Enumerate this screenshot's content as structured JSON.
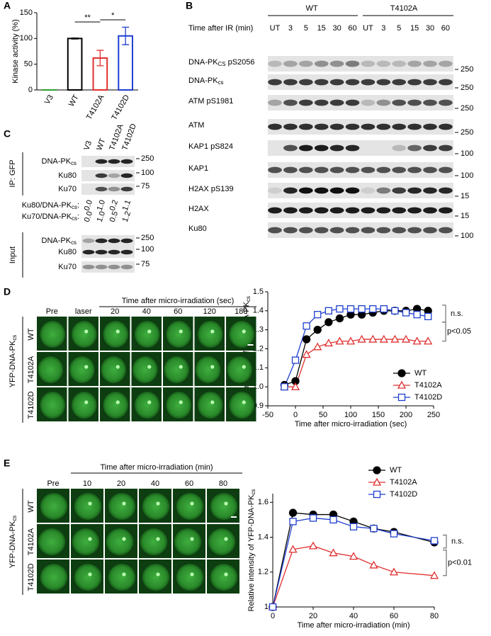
{
  "panel_labels": [
    "A",
    "B",
    "C",
    "D",
    "E"
  ],
  "chart_data": [
    {
      "type": "bar",
      "y_label": "Kinase activity (%)",
      "categories": [
        "V3",
        "WT",
        "T4102A",
        "T4102D"
      ],
      "values": [
        0,
        100,
        62,
        105
      ],
      "errors": [
        0,
        1,
        15,
        17
      ],
      "colors": [
        "#2ca02c",
        "#000000",
        "#e03030",
        "#1f3fd0"
      ],
      "ylim": [
        0,
        150
      ],
      "yticks": [
        0,
        50,
        100,
        150
      ],
      "annotations": [
        "**",
        "*"
      ]
    },
    {
      "type": "line",
      "y_label": [
        "Recruitment of YFP-DNA-PK",
        "cs"
      ],
      "x_label": "Time after micro-irradiation (sec)",
      "x": [
        -20,
        0,
        20,
        40,
        60,
        80,
        100,
        120,
        140,
        160,
        180,
        200,
        220,
        240
      ],
      "series": [
        {
          "name": "WT",
          "color": "#000000",
          "marker": "circle",
          "filled": true,
          "values": [
            1.01,
            1.03,
            1.25,
            1.3,
            1.34,
            1.36,
            1.38,
            1.38,
            1.39,
            1.4,
            1.4,
            1.4,
            1.41,
            1.4
          ]
        },
        {
          "name": "T4102A",
          "color": "#e03030",
          "marker": "triangle",
          "filled": false,
          "values": [
            1.0,
            1.0,
            1.17,
            1.21,
            1.23,
            1.24,
            1.24,
            1.25,
            1.25,
            1.25,
            1.25,
            1.25,
            1.24,
            1.24
          ]
        },
        {
          "name": "T4102D",
          "color": "#1f3fd0",
          "marker": "square",
          "filled": false,
          "values": [
            1.0,
            1.14,
            1.32,
            1.38,
            1.4,
            1.41,
            1.41,
            1.41,
            1.41,
            1.41,
            1.4,
            1.39,
            1.38,
            1.37
          ]
        }
      ],
      "xlim": [
        -50,
        250
      ],
      "xticks": [
        -50,
        0,
        50,
        100,
        150,
        200,
        250
      ],
      "ylim": [
        0.9,
        1.5
      ],
      "yticks": [
        0.9,
        {
          "value": 1,
          "label": "1.0"
        },
        1.1,
        1.2,
        1.3,
        1.4,
        1.5
      ],
      "legend": "lower right",
      "annotations": [
        "n.s.",
        "p<0.05"
      ]
    },
    {
      "type": "line",
      "y_label": [
        "Relative intensity  of YFP-DNA-PK",
        "cs"
      ],
      "x_label": "Time after micro-irradiation (min)",
      "x": [
        0,
        10,
        20,
        30,
        40,
        50,
        60,
        80
      ],
      "series": [
        {
          "name": "WT",
          "color": "#000000",
          "marker": "circle",
          "filled": true,
          "values": [
            1.0,
            1.54,
            1.53,
            1.53,
            1.49,
            1.45,
            1.43,
            1.37
          ]
        },
        {
          "name": "T4102A",
          "color": "#e03030",
          "marker": "triangle",
          "filled": false,
          "values": [
            1.0,
            1.33,
            1.35,
            1.31,
            1.29,
            1.24,
            1.2,
            1.18
          ]
        },
        {
          "name": "T4102D",
          "color": "#1f3fd0",
          "marker": "square",
          "filled": false,
          "values": [
            1.0,
            1.49,
            1.51,
            1.5,
            1.46,
            1.45,
            1.42,
            1.38
          ]
        }
      ],
      "xlim": [
        0,
        80
      ],
      "xticks": [
        0,
        20,
        40,
        60,
        80
      ],
      "ylim": [
        1,
        1.65
      ],
      "yticks": [
        1,
        1.2,
        1.4,
        1.6
      ],
      "legend": "upper right",
      "annotations": [
        "n.s.",
        "p<0.01"
      ]
    }
  ],
  "blot_b": {
    "groups": [
      "WT",
      "T4102A"
    ],
    "time_label": "Time after IR (min)",
    "times": [
      "UT",
      "3",
      "5",
      "15",
      "30",
      "60",
      "UT",
      "3",
      "5",
      "15",
      "30",
      "60"
    ],
    "rows": [
      {
        "label": [
          "DNA-PK",
          "CS",
          " pS2056"
        ],
        "marker": "250"
      },
      {
        "label": [
          "DNA-PK",
          "cs"
        ],
        "marker": "250"
      },
      {
        "label": "ATM pS1981",
        "marker": "250"
      },
      {
        "label": "ATM",
        "marker": "250"
      },
      {
        "label": "KAP1 pS824",
        "marker": "100"
      },
      {
        "label": "KAP1",
        "marker": "100"
      },
      {
        "label": "H2AX pS139",
        "marker": "15"
      },
      {
        "label": "H2AX",
        "marker": "15"
      },
      {
        "label": "Ku80",
        "marker": "100"
      }
    ]
  },
  "blot_c": {
    "ip_label": "IP: GFP",
    "lanes": [
      "V3",
      "WT",
      "T4102A",
      "T4102D"
    ],
    "ip_rows": [
      {
        "label": [
          "DNA-PK",
          "cs"
        ],
        "marker": "250"
      },
      {
        "label": "Ku80",
        "marker": "100"
      },
      {
        "label": "Ku70",
        "marker": "75"
      }
    ],
    "ratios": [
      {
        "label": [
          "Ku80/DNA-PK",
          "cs",
          ":"
        ],
        "values": [
          "0.0",
          "1.0",
          "0.2",
          "1.1"
        ]
      },
      {
        "label": [
          "Ku70/DNA-PK",
          "cs",
          ":"
        ],
        "values": [
          "0.0",
          "1.0",
          "0.5",
          "1.2"
        ]
      }
    ],
    "input_label": "Input",
    "input_rows": [
      {
        "label": [
          "DNA-PK",
          "cs"
        ],
        "marker": "250"
      },
      {
        "label": "Ku80",
        "marker": "100"
      },
      {
        "label": "Ku70",
        "marker": "75"
      }
    ]
  },
  "images_d": {
    "time_label": "Time after micro-irradiation (sec)",
    "columns": [
      "Pre",
      "laser",
      "20",
      "40",
      "60",
      "120",
      "180"
    ],
    "rows": [
      "WT",
      "T4102A",
      "T4102D"
    ],
    "construct": [
      "YFP-DNA-PK",
      "cs"
    ]
  },
  "images_e": {
    "time_label": "Time after micro-irradiation (min)",
    "columns": [
      "Pre",
      "10",
      "20",
      "40",
      "60",
      "80"
    ],
    "rows": [
      "WT",
      "T4102A",
      "T4102D"
    ],
    "construct": [
      "YFP-DNA-PK",
      "cs"
    ]
  }
}
